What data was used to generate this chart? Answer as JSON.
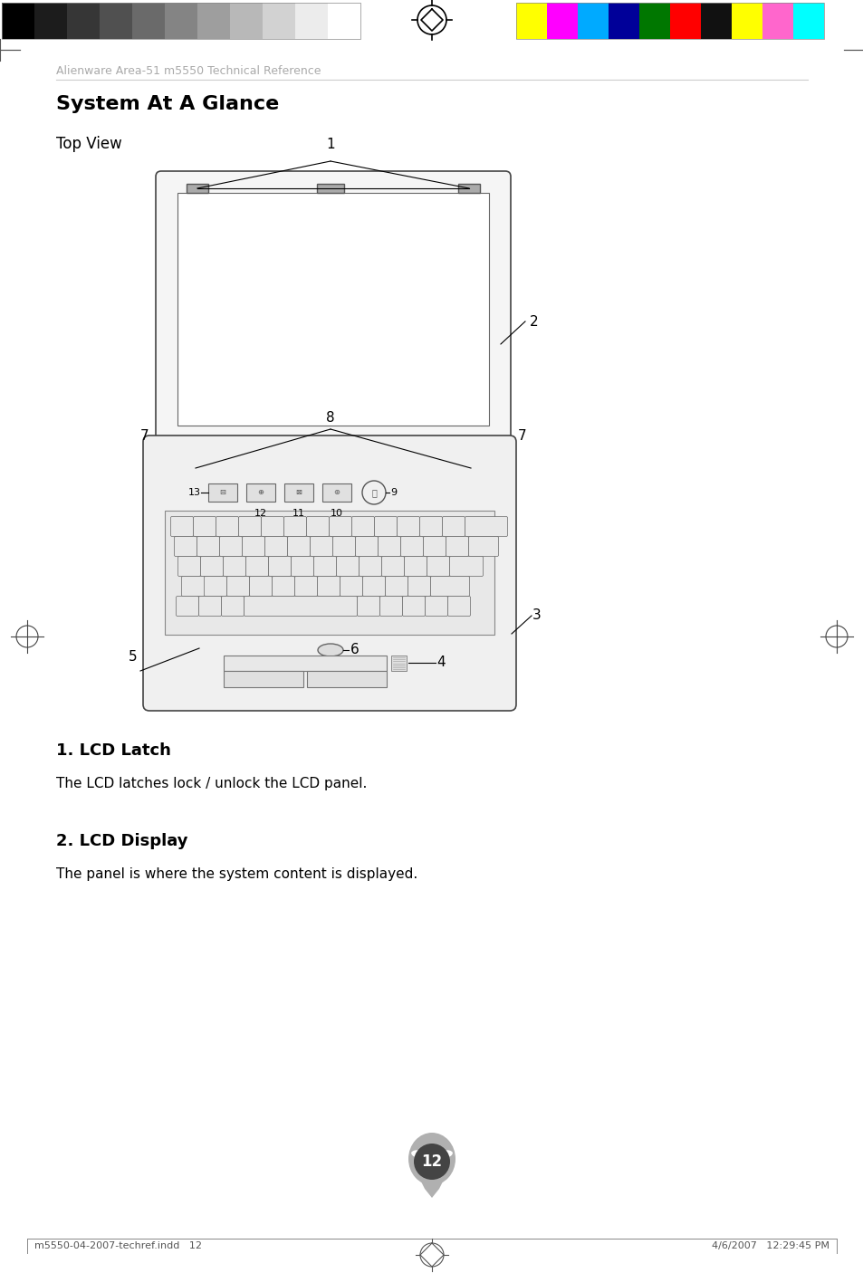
{
  "page_title": "Alienware Area-51 m5550 Technical Reference",
  "section_title": "System At A Glance",
  "subsection_title": "Top View",
  "item1_title": "1. LCD Latch",
  "item1_text": "The LCD latches lock / unlock the LCD panel.",
  "item2_title": "2. LCD Display",
  "item2_text": "The panel is where the system content is displayed.",
  "footer_left": "m5550-04-2007-techref.indd   12",
  "footer_right": "4/6/2007   12:29:45 PM",
  "page_number": "12",
  "bg_color": "#ffffff",
  "gray_colors": [
    "#000000",
    "#1c1c1c",
    "#363636",
    "#505050",
    "#6a6a6a",
    "#848484",
    "#9e9e9e",
    "#b8b8b8",
    "#d2d2d2",
    "#ececec",
    "#ffffff"
  ],
  "color_bars": [
    "#ffff00",
    "#ff00ff",
    "#00aaff",
    "#000099",
    "#007700",
    "#ff0000",
    "#111111",
    "#ffff00",
    "#ff66cc",
    "#00ffff"
  ],
  "crosshair_color": "#000000",
  "line_color": "#333333",
  "diagram_stroke": "#444444",
  "diagram_fill": "#f0f0f0",
  "screen_fill": "#ffffff",
  "key_fill": "#e8e8e8",
  "key_stroke": "#666666",
  "label_fontsize": 11,
  "header_fontsize": 9,
  "section_fontsize": 16,
  "sub_fontsize": 12,
  "item_title_fontsize": 13,
  "item_text_fontsize": 11,
  "footer_fontsize": 8
}
